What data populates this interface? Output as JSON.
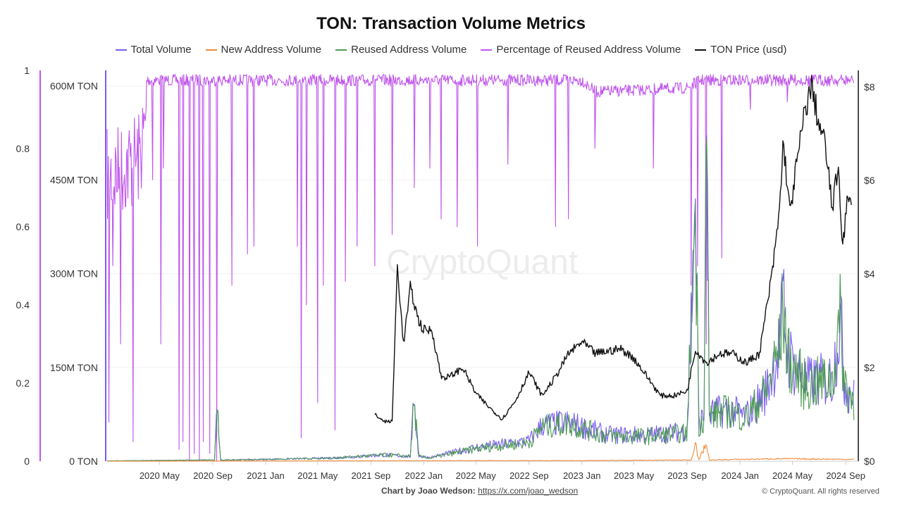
{
  "chart_data": {
    "type": "line",
    "title": "TON: Transaction Volume Metrics",
    "legend_position": "top",
    "grid": true,
    "x_range": [
      "2020-01-01",
      "2024-09-30"
    ],
    "x_ticks": [
      "2020 May",
      "2020 Sep",
      "2021 Jan",
      "2021 May",
      "2021 Sep",
      "2022 Jan",
      "2022 May",
      "2022 Sep",
      "2023 Jan",
      "2023 May",
      "2023 Sep",
      "2024 Jan",
      "2024 May",
      "2024 Sep"
    ],
    "y_axes": {
      "percentage": {
        "ticks": [
          "0",
          "0.2",
          "0.4",
          "0.6",
          "0.8",
          "1"
        ],
        "range": [
          0,
          1
        ]
      },
      "volume": {
        "ticks": [
          "0 TON",
          "150M TON",
          "300M TON",
          "450M TON",
          "600M TON"
        ],
        "range_millions": [
          0,
          625
        ]
      },
      "price": {
        "ticks": [
          "$0",
          "$2",
          "$4",
          "$6",
          "$8"
        ],
        "range": [
          0,
          8.35
        ]
      }
    },
    "series": [
      {
        "name": "Total Volume",
        "color": "#7a5cf0",
        "axis": "volume",
        "unit": "M TON",
        "points": [
          [
            "2020-01-01",
            0.5
          ],
          [
            "2020-09-05",
            2
          ],
          [
            "2020-09-12",
            96
          ],
          [
            "2020-09-18",
            2
          ],
          [
            "2021-01-01",
            3
          ],
          [
            "2021-06-01",
            5
          ],
          [
            "2021-10-01",
            10
          ],
          [
            "2021-12-01",
            8
          ],
          [
            "2021-12-10",
            100
          ],
          [
            "2021-12-20",
            8
          ],
          [
            "2022-01-15",
            6
          ],
          [
            "2022-05-01",
            22
          ],
          [
            "2022-09-01",
            32
          ],
          [
            "2022-10-01",
            58
          ],
          [
            "2022-12-01",
            62
          ],
          [
            "2023-03-01",
            42
          ],
          [
            "2023-06-01",
            42
          ],
          [
            "2023-09-01",
            48
          ],
          [
            "2023-09-20",
            420
          ],
          [
            "2023-09-28",
            60
          ],
          [
            "2023-10-10",
            72
          ],
          [
            "2023-10-15",
            595
          ],
          [
            "2023-10-22",
            75
          ],
          [
            "2023-12-01",
            82
          ],
          [
            "2024-01-15",
            72
          ],
          [
            "2024-03-01",
            112
          ],
          [
            "2024-04-01",
            185
          ],
          [
            "2024-04-10",
            255
          ],
          [
            "2024-04-20",
            170
          ],
          [
            "2024-06-01",
            125
          ],
          [
            "2024-08-01",
            132
          ],
          [
            "2024-08-20",
            230
          ],
          [
            "2024-08-28",
            130
          ],
          [
            "2024-09-20",
            100
          ]
        ]
      },
      {
        "name": "New Address Volume",
        "color": "#f28c3c",
        "axis": "volume",
        "unit": "M TON",
        "points": [
          [
            "2020-01-01",
            0
          ],
          [
            "2022-05-01",
            1
          ],
          [
            "2023-01-01",
            1
          ],
          [
            "2023-09-10",
            2
          ],
          [
            "2023-09-20",
            30
          ],
          [
            "2023-09-28",
            2
          ],
          [
            "2023-10-15",
            28
          ],
          [
            "2023-10-22",
            2
          ],
          [
            "2024-01-01",
            3
          ],
          [
            "2024-04-01",
            4
          ],
          [
            "2024-09-20",
            3
          ]
        ]
      },
      {
        "name": "Reused Address Volume",
        "color": "#4c9a52",
        "axis": "volume",
        "unit": "M TON",
        "points": [
          [
            "2020-01-01",
            0.5
          ],
          [
            "2020-09-05",
            2
          ],
          [
            "2020-09-12",
            95
          ],
          [
            "2020-09-18",
            2
          ],
          [
            "2021-01-01",
            3
          ],
          [
            "2021-06-01",
            5
          ],
          [
            "2021-10-01",
            10
          ],
          [
            "2021-12-01",
            8
          ],
          [
            "2021-12-10",
            100
          ],
          [
            "2021-12-20",
            8
          ],
          [
            "2022-01-15",
            5
          ],
          [
            "2022-05-01",
            20
          ],
          [
            "2022-09-01",
            30
          ],
          [
            "2022-10-01",
            55
          ],
          [
            "2022-12-01",
            60
          ],
          [
            "2023-03-01",
            40
          ],
          [
            "2023-06-01",
            40
          ],
          [
            "2023-09-01",
            45
          ],
          [
            "2023-09-20",
            415
          ],
          [
            "2023-09-28",
            58
          ],
          [
            "2023-10-10",
            70
          ],
          [
            "2023-10-15",
            590
          ],
          [
            "2023-10-22",
            72
          ],
          [
            "2023-12-01",
            80
          ],
          [
            "2024-01-15",
            70
          ],
          [
            "2024-03-01",
            110
          ],
          [
            "2024-04-01",
            180
          ],
          [
            "2024-04-10",
            250
          ],
          [
            "2024-04-20",
            165
          ],
          [
            "2024-06-01",
            120
          ],
          [
            "2024-08-01",
            130
          ],
          [
            "2024-08-20",
            228
          ],
          [
            "2024-08-28",
            128
          ],
          [
            "2024-09-20",
            95
          ]
        ]
      },
      {
        "name": "Percentage of Reused Address Volume",
        "color": "#bf55ec",
        "axis": "percentage",
        "baseline": [
          [
            "2020-01-01",
            0.85
          ],
          [
            "2020-03-15",
            0.9
          ],
          [
            "2020-04-01",
            0.99
          ],
          [
            "2023-01-01",
            0.99
          ],
          [
            "2023-02-01",
            0.96
          ],
          [
            "2023-09-01",
            0.97
          ],
          [
            "2023-10-01",
            0.99
          ],
          [
            "2024-09-20",
            0.99
          ]
        ],
        "dips": [
          [
            "2020-01-05",
            0.1
          ],
          [
            "2020-01-15",
            0.5
          ],
          [
            "2020-02-01",
            0.3
          ],
          [
            "2020-03-01",
            0.05
          ],
          [
            "2020-04-15",
            0.72
          ],
          [
            "2020-05-05",
            0.3
          ],
          [
            "2020-05-10",
            0.75
          ],
          [
            "2020-06-15",
            0.03
          ],
          [
            "2020-06-25",
            0.05
          ],
          [
            "2020-07-10",
            0.0
          ],
          [
            "2020-07-20",
            0.02
          ],
          [
            "2020-08-01",
            0.0
          ],
          [
            "2020-08-10",
            0.05
          ],
          [
            "2020-08-25",
            0.02
          ],
          [
            "2020-09-10",
            0.0
          ],
          [
            "2020-10-15",
            0.45
          ],
          [
            "2020-11-20",
            0.53
          ],
          [
            "2020-12-05",
            0.55
          ],
          [
            "2021-03-15",
            0.55
          ],
          [
            "2021-03-25",
            0.06
          ],
          [
            "2021-04-05",
            0.4
          ],
          [
            "2021-05-01",
            0.15
          ],
          [
            "2021-05-15",
            0.45
          ],
          [
            "2021-06-10",
            0.08
          ],
          [
            "2021-07-05",
            0.46
          ],
          [
            "2021-08-01",
            0.55
          ],
          [
            "2021-09-10",
            0.5
          ],
          [
            "2021-10-20",
            0.58
          ],
          [
            "2021-12-10",
            0.7
          ],
          [
            "2022-01-15",
            0.75
          ],
          [
            "2022-02-10",
            0.62
          ],
          [
            "2022-03-20",
            0.6
          ],
          [
            "2022-05-05",
            0.55
          ],
          [
            "2022-07-15",
            0.76
          ],
          [
            "2022-11-01",
            0.6
          ],
          [
            "2022-12-01",
            0.62
          ],
          [
            "2023-02-01",
            0.8
          ],
          [
            "2023-06-15",
            0.75
          ],
          [
            "2023-09-10",
            0.45
          ],
          [
            "2023-09-25",
            0.5
          ],
          [
            "2023-10-15",
            0.3
          ],
          [
            "2023-11-20",
            0.52
          ],
          [
            "2024-01-25",
            0.9
          ],
          [
            "2024-04-20",
            0.92
          ],
          [
            "2024-06-10",
            0.95
          ]
        ]
      },
      {
        "name": "TON Price (usd)",
        "color": "#111111",
        "axis": "price",
        "unit": "usd",
        "points": [
          [
            "2021-09-10",
            1.0
          ],
          [
            "2021-10-01",
            0.85
          ],
          [
            "2021-10-20",
            0.85
          ],
          [
            "2021-11-01",
            4.2
          ],
          [
            "2021-11-15",
            2.5
          ],
          [
            "2021-12-01",
            3.7
          ],
          [
            "2021-12-20",
            3.0
          ],
          [
            "2022-01-01",
            2.8
          ],
          [
            "2022-01-20",
            2.8
          ],
          [
            "2022-02-10",
            1.8
          ],
          [
            "2022-03-01",
            1.8
          ],
          [
            "2022-04-01",
            2.0
          ],
          [
            "2022-05-01",
            1.45
          ],
          [
            "2022-06-01",
            1.15
          ],
          [
            "2022-07-01",
            0.9
          ],
          [
            "2022-08-01",
            1.3
          ],
          [
            "2022-09-01",
            1.9
          ],
          [
            "2022-10-01",
            1.4
          ],
          [
            "2022-11-01",
            1.8
          ],
          [
            "2022-12-01",
            2.3
          ],
          [
            "2023-01-01",
            2.55
          ],
          [
            "2023-02-01",
            2.3
          ],
          [
            "2023-03-01",
            2.35
          ],
          [
            "2023-04-01",
            2.4
          ],
          [
            "2023-05-01",
            2.2
          ],
          [
            "2023-06-01",
            1.8
          ],
          [
            "2023-07-01",
            1.4
          ],
          [
            "2023-08-01",
            1.4
          ],
          [
            "2023-09-01",
            1.5
          ],
          [
            "2023-09-20",
            2.4
          ],
          [
            "2023-10-15",
            2.1
          ],
          [
            "2023-11-15",
            2.3
          ],
          [
            "2023-12-15",
            2.3
          ],
          [
            "2024-01-15",
            2.1
          ],
          [
            "2024-02-15",
            2.3
          ],
          [
            "2024-03-01",
            3.2
          ],
          [
            "2024-03-15",
            4.0
          ],
          [
            "2024-04-01",
            5.35
          ],
          [
            "2024-04-10",
            6.85
          ],
          [
            "2024-04-25",
            5.3
          ],
          [
            "2024-05-10",
            6.3
          ],
          [
            "2024-06-01",
            7.6
          ],
          [
            "2024-06-15",
            8.0
          ],
          [
            "2024-07-01",
            7.2
          ],
          [
            "2024-07-15",
            6.8
          ],
          [
            "2024-08-01",
            5.4
          ],
          [
            "2024-08-15",
            6.3
          ],
          [
            "2024-08-25",
            4.6
          ],
          [
            "2024-09-05",
            5.6
          ],
          [
            "2024-09-15",
            5.4
          ]
        ]
      }
    ]
  },
  "footer": {
    "credit_label": "Chart by Joao Wedson:",
    "credit_link": "https://x.com/joao_wedson",
    "copyright": "© CryptoQuant. All rights reserved"
  },
  "watermark": "CryptoQuant"
}
